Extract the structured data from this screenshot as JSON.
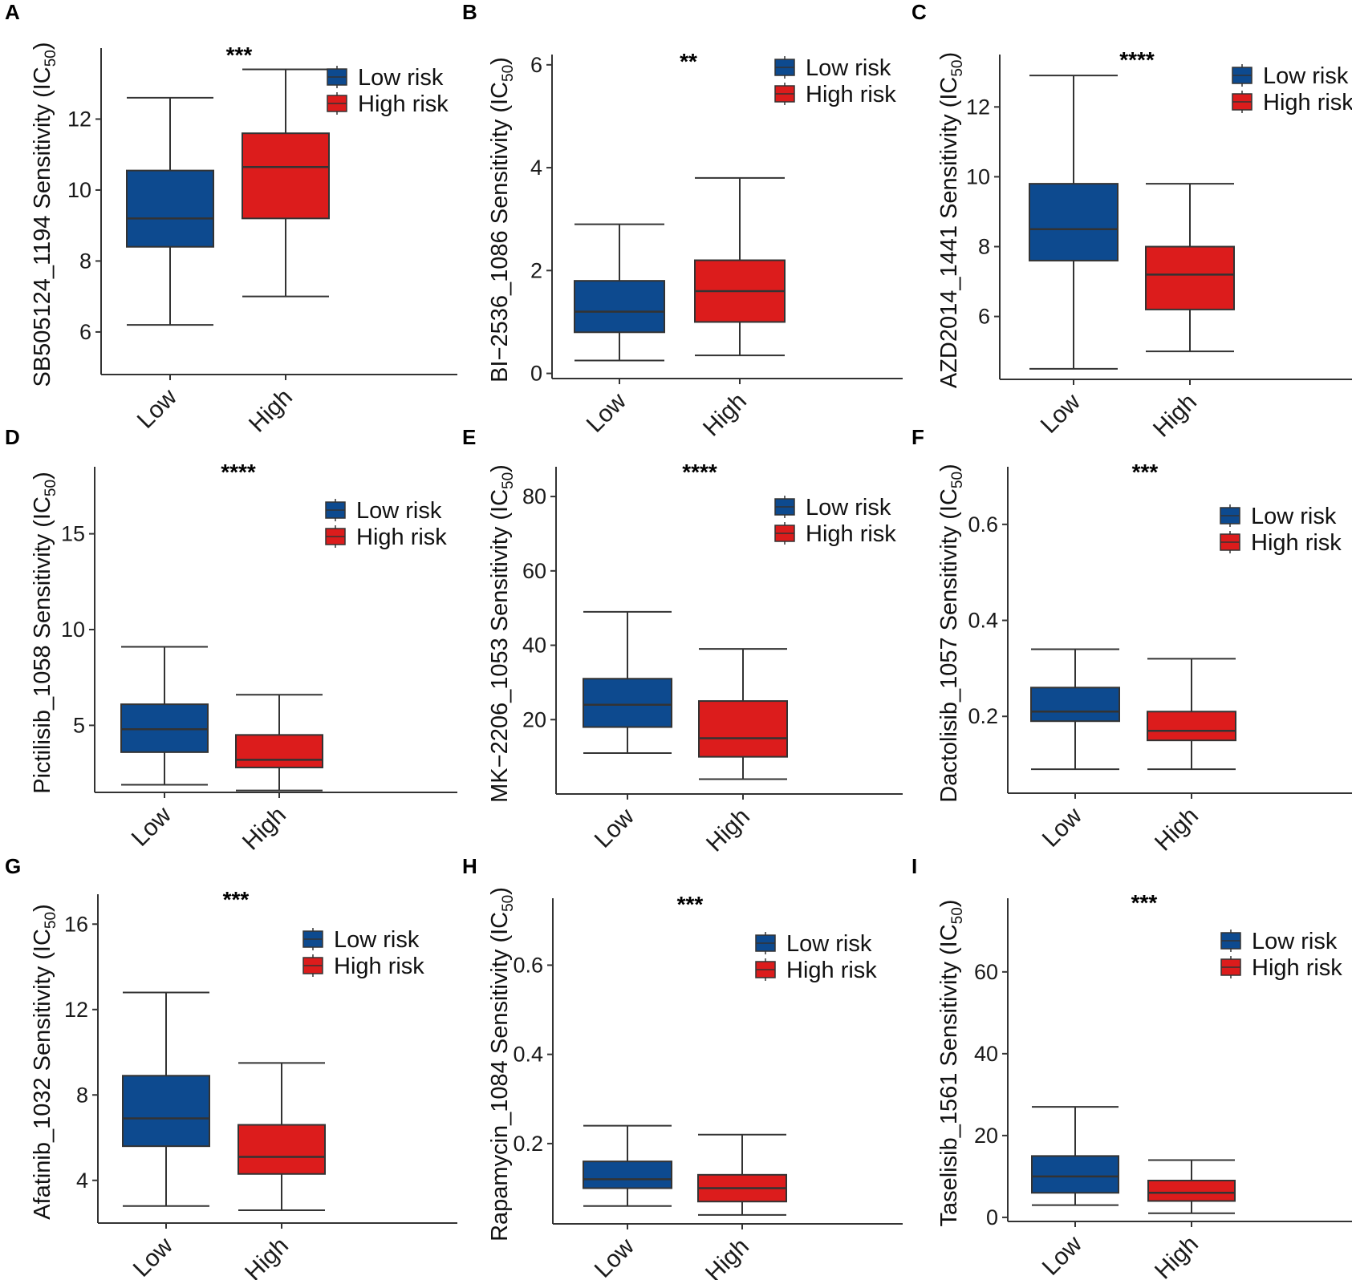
{
  "figure": {
    "colors": {
      "low": "#0d4a8f",
      "high": "#dc1c1c"
    },
    "legend": {
      "low_label": "Low risk",
      "high_label": "High risk"
    }
  },
  "chart_data": [
    {
      "type": "box",
      "panel": "A",
      "title": "",
      "ylabel_main": "SB505124_1194 Sensitivity (IC",
      "ylabel_sub": "50",
      "ylabel_close": ")",
      "categories": [
        "Low",
        "High"
      ],
      "ylim": [
        4.8,
        14
      ],
      "yticks": [
        6,
        8,
        10,
        12
      ],
      "significance": "***",
      "boxes": [
        {
          "group": "Low",
          "min": 6.2,
          "q1": 8.4,
          "median": 9.2,
          "q3": 10.55,
          "max": 12.6
        },
        {
          "group": "High",
          "min": 7.0,
          "q1": 9.2,
          "median": 10.65,
          "q3": 11.6,
          "max": 13.4
        }
      ],
      "legend": [
        "Low risk",
        "High risk"
      ]
    },
    {
      "type": "box",
      "panel": "B",
      "title": "",
      "ylabel_main": "BI−2536_1086 Sensitivity (IC",
      "ylabel_sub": "50",
      "ylabel_close": ")",
      "categories": [
        "Low",
        "High"
      ],
      "ylim": [
        -0.1,
        6.2
      ],
      "yticks": [
        0,
        2,
        4,
        6
      ],
      "significance": "**",
      "boxes": [
        {
          "group": "Low",
          "min": 0.25,
          "q1": 0.8,
          "median": 1.2,
          "q3": 1.8,
          "max": 2.9
        },
        {
          "group": "High",
          "min": 0.35,
          "q1": 1.0,
          "median": 1.6,
          "q3": 2.2,
          "max": 3.8
        }
      ],
      "legend": [
        "Low risk",
        "High risk"
      ]
    },
    {
      "type": "box",
      "panel": "C",
      "title": "",
      "ylabel_main": "AZD2014_1441 Sensitivity (IC",
      "ylabel_sub": "50",
      "ylabel_close": ")",
      "categories": [
        "Low",
        "High"
      ],
      "ylim": [
        4.2,
        13.5
      ],
      "yticks": [
        6,
        8,
        10,
        12
      ],
      "significance": "****",
      "boxes": [
        {
          "group": "Low",
          "min": 4.5,
          "q1": 7.6,
          "median": 8.5,
          "q3": 9.8,
          "max": 12.9
        },
        {
          "group": "High",
          "min": 5.0,
          "q1": 6.2,
          "median": 7.2,
          "q3": 8.0,
          "max": 9.8
        }
      ],
      "legend": [
        "Low risk",
        "High risk"
      ]
    },
    {
      "type": "box",
      "panel": "D",
      "title": "",
      "ylabel_main": "Pictilisib_1058 Sensitivity (IC",
      "ylabel_sub": "50",
      "ylabel_close": ")",
      "categories": [
        "Low",
        "High"
      ],
      "ylim": [
        1.5,
        18.5
      ],
      "yticks": [
        5,
        10,
        15
      ],
      "significance": "****",
      "boxes": [
        {
          "group": "Low",
          "min": 1.9,
          "q1": 3.6,
          "median": 4.8,
          "q3": 6.1,
          "max": 9.1
        },
        {
          "group": "High",
          "min": 1.6,
          "q1": 2.8,
          "median": 3.2,
          "q3": 4.5,
          "max": 6.6
        }
      ],
      "legend": [
        "Low risk",
        "High risk"
      ]
    },
    {
      "type": "box",
      "panel": "E",
      "title": "",
      "ylabel_main": "MK−2206_1053 Sensitivity (IC",
      "ylabel_sub": "50",
      "ylabel_close": ")",
      "categories": [
        "Low",
        "High"
      ],
      "ylim": [
        0,
        88
      ],
      "yticks": [
        20,
        40,
        60,
        80
      ],
      "significance": "****",
      "boxes": [
        {
          "group": "Low",
          "min": 11,
          "q1": 18,
          "median": 24,
          "q3": 31,
          "max": 49
        },
        {
          "group": "High",
          "min": 4,
          "q1": 10,
          "median": 15,
          "q3": 25,
          "max": 39
        }
      ],
      "legend": [
        "Low risk",
        "High risk"
      ]
    },
    {
      "type": "box",
      "panel": "F",
      "title": "",
      "ylabel_main": "Dactolisib_1057 Sensitivity (IC",
      "ylabel_sub": "50",
      "ylabel_close": ")",
      "categories": [
        "Low",
        "High"
      ],
      "ylim": [
        0.04,
        0.72
      ],
      "yticks": [
        0.2,
        0.4,
        0.6
      ],
      "significance": "***",
      "boxes": [
        {
          "group": "Low",
          "min": 0.09,
          "q1": 0.19,
          "median": 0.21,
          "q3": 0.26,
          "max": 0.34
        },
        {
          "group": "High",
          "min": 0.09,
          "q1": 0.15,
          "median": 0.17,
          "q3": 0.21,
          "max": 0.32
        }
      ],
      "legend": [
        "Low risk",
        "High risk"
      ]
    },
    {
      "type": "box",
      "panel": "G",
      "title": "",
      "ylabel_main": "Afatinib_1032 Sensitivity (IC",
      "ylabel_sub": "50",
      "ylabel_close": ")",
      "categories": [
        "Low",
        "High"
      ],
      "ylim": [
        2.0,
        17.4
      ],
      "yticks": [
        4,
        8,
        12,
        16
      ],
      "significance": "***",
      "boxes": [
        {
          "group": "Low",
          "min": 2.8,
          "q1": 5.6,
          "median": 6.9,
          "q3": 8.9,
          "max": 12.8
        },
        {
          "group": "High",
          "min": 2.6,
          "q1": 4.3,
          "median": 5.1,
          "q3": 6.6,
          "max": 9.5
        }
      ],
      "legend": [
        "Low risk",
        "High risk"
      ]
    },
    {
      "type": "box",
      "panel": "H",
      "title": "",
      "ylabel_main": "Rapamycin_1084 Sensitivity (IC",
      "ylabel_sub": "50",
      "ylabel_close": ")",
      "categories": [
        "Low",
        "High"
      ],
      "ylim": [
        0.02,
        0.75
      ],
      "yticks": [
        0.2,
        0.4,
        0.6
      ],
      "significance": "***",
      "boxes": [
        {
          "group": "Low",
          "min": 0.06,
          "q1": 0.1,
          "median": 0.12,
          "q3": 0.16,
          "max": 0.24
        },
        {
          "group": "High",
          "min": 0.04,
          "q1": 0.07,
          "median": 0.1,
          "q3": 0.13,
          "max": 0.22
        }
      ],
      "legend": [
        "Low risk",
        "High risk"
      ]
    },
    {
      "type": "box",
      "panel": "I",
      "title": "",
      "ylabel_main": "Taselisib_1561 Sensitivity (IC",
      "ylabel_sub": "50",
      "ylabel_close": ")",
      "categories": [
        "Low",
        "High"
      ],
      "ylim": [
        -1,
        78
      ],
      "yticks": [
        0,
        20,
        40,
        60
      ],
      "significance": "***",
      "boxes": [
        {
          "group": "Low",
          "min": 3,
          "q1": 6,
          "median": 10,
          "q3": 15,
          "max": 27
        },
        {
          "group": "High",
          "min": 1,
          "q1": 4,
          "median": 6,
          "q3": 9,
          "max": 14
        }
      ],
      "legend": [
        "Low risk",
        "High risk"
      ]
    }
  ]
}
